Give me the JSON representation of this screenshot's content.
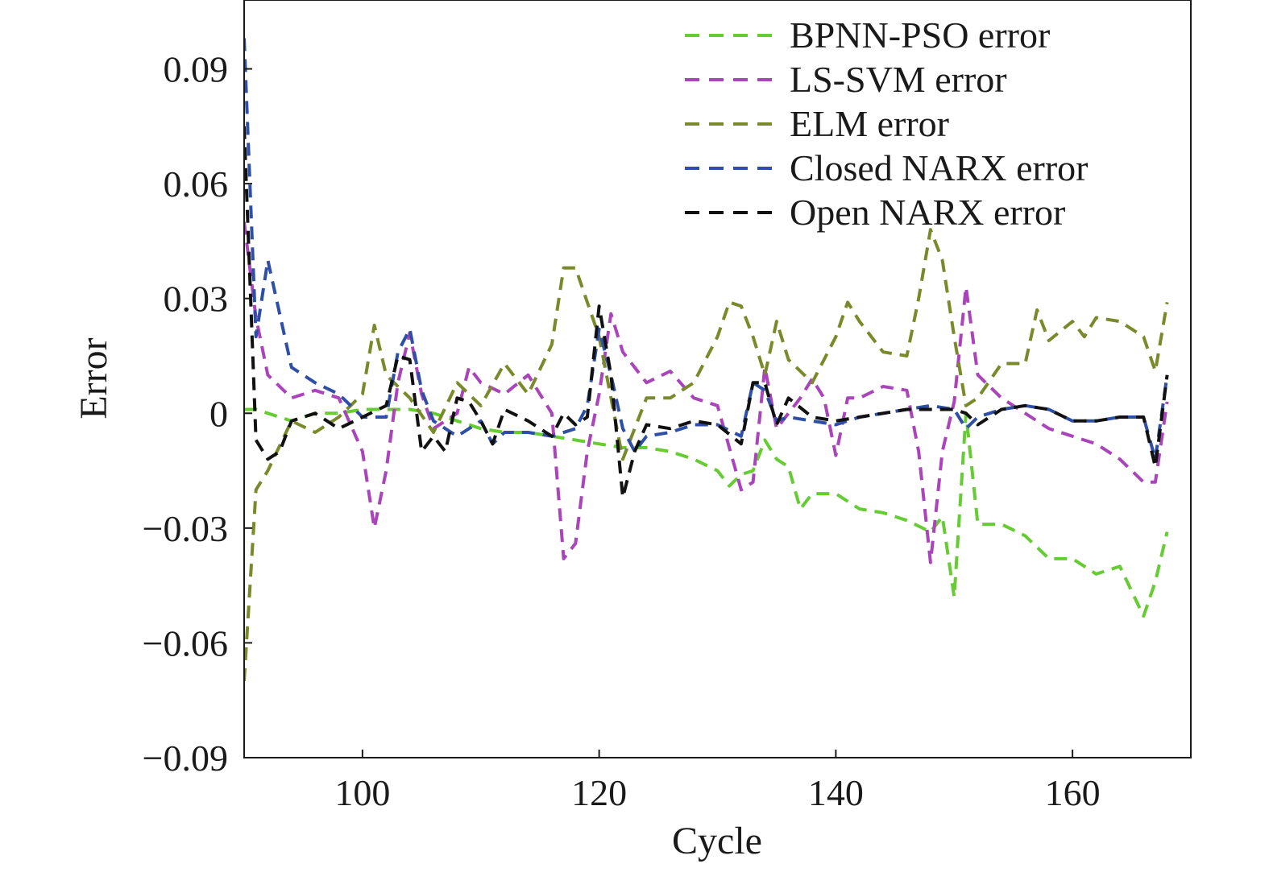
{
  "chart_data": {
    "type": "line",
    "title": "",
    "xlabel": "Cycle",
    "ylabel": "Error",
    "xlim": [
      90,
      170
    ],
    "ylim": [
      -0.09,
      0.108
    ],
    "xticks": [
      100,
      120,
      140,
      160
    ],
    "xtick_labels": [
      "100",
      "120",
      "140",
      "160"
    ],
    "yticks": [
      0.09,
      0.06,
      0.03,
      0,
      -0.03,
      -0.06,
      -0.09
    ],
    "ytick_labels": [
      "0.09",
      "0.06",
      "0.03",
      "0",
      "−0.03",
      "−0.06",
      "−0.09"
    ],
    "grid": false,
    "legend_position": "top-right",
    "line_style": "dashed",
    "series": [
      {
        "name": "BPNN-PSO error",
        "color": "#66cc33",
        "x": [
          90,
          91,
          92,
          94,
          96,
          98,
          100,
          102,
          104,
          106,
          108,
          110,
          112,
          114,
          116,
          118,
          120,
          122,
          124,
          126,
          128,
          130,
          131,
          132,
          133,
          134,
          135,
          136,
          137,
          138,
          140,
          142,
          144,
          146,
          148,
          149,
          150,
          151,
          152,
          154,
          156,
          158,
          160,
          162,
          164,
          166,
          167,
          168
        ],
        "y": [
          0.001,
          0.001,
          0.0,
          -0.002,
          0.0,
          0.0,
          0.001,
          0.001,
          0.001,
          0.0,
          -0.002,
          -0.004,
          -0.005,
          -0.005,
          -0.006,
          -0.007,
          -0.008,
          -0.009,
          -0.009,
          -0.01,
          -0.012,
          -0.015,
          -0.019,
          -0.016,
          -0.015,
          -0.007,
          -0.012,
          -0.014,
          -0.025,
          -0.021,
          -0.021,
          -0.025,
          -0.026,
          -0.028,
          -0.031,
          -0.027,
          -0.048,
          0.0,
          -0.029,
          -0.029,
          -0.032,
          -0.038,
          -0.038,
          -0.042,
          -0.04,
          -0.053,
          -0.044,
          -0.031
        ]
      },
      {
        "name": "LS-SVM error",
        "color": "#aa44bb",
        "x": [
          90,
          91,
          92,
          94,
          96,
          98,
          100,
          101,
          102,
          103,
          104,
          105,
          106,
          108,
          109,
          110,
          112,
          114,
          116,
          117,
          118,
          119,
          120,
          121,
          122,
          124,
          126,
          128,
          130,
          132,
          133,
          134,
          135,
          136,
          137,
          138,
          139,
          140,
          141,
          142,
          144,
          146,
          147,
          148,
          149,
          150,
          151,
          152,
          154,
          156,
          158,
          160,
          162,
          164,
          166,
          167,
          168
        ],
        "y": [
          0.05,
          0.025,
          0.01,
          0.004,
          0.006,
          0.004,
          -0.01,
          -0.03,
          -0.015,
          0.008,
          0.021,
          0.005,
          -0.004,
          0.0,
          0.012,
          0.008,
          0.005,
          0.01,
          0.0,
          -0.038,
          -0.034,
          -0.01,
          0.005,
          0.026,
          0.016,
          0.008,
          0.011,
          0.004,
          0.002,
          -0.02,
          -0.018,
          0.012,
          -0.004,
          0.0,
          0.004,
          0.009,
          0.004,
          -0.011,
          0.004,
          0.004,
          0.007,
          0.006,
          -0.01,
          -0.039,
          -0.01,
          0.003,
          0.033,
          0.01,
          0.004,
          0.0,
          -0.004,
          -0.006,
          -0.008,
          -0.012,
          -0.018,
          -0.018,
          0.003
        ]
      },
      {
        "name": "ELM error",
        "color": "#7a8a2a",
        "x": [
          90,
          91,
          92,
          94,
          96,
          98,
          100,
          101,
          102,
          104,
          106,
          108,
          110,
          112,
          114,
          116,
          117,
          118,
          120,
          122,
          124,
          126,
          128,
          130,
          131,
          132,
          133,
          134,
          135,
          136,
          138,
          140,
          141,
          142,
          144,
          146,
          147,
          148,
          149,
          150,
          151,
          152,
          154,
          156,
          157,
          158,
          160,
          161,
          162,
          164,
          166,
          167,
          168
        ],
        "y": [
          -0.07,
          -0.02,
          -0.015,
          -0.002,
          -0.005,
          -0.001,
          0.005,
          0.023,
          0.01,
          0.004,
          -0.005,
          0.008,
          0.002,
          0.013,
          0.005,
          0.018,
          0.038,
          0.038,
          0.02,
          -0.012,
          0.004,
          0.004,
          0.008,
          0.02,
          0.029,
          0.028,
          0.02,
          0.01,
          0.024,
          0.014,
          0.008,
          0.02,
          0.029,
          0.024,
          0.016,
          0.015,
          0.03,
          0.048,
          0.04,
          0.02,
          0.002,
          0.004,
          0.013,
          0.013,
          0.027,
          0.019,
          0.024,
          0.02,
          0.025,
          0.024,
          0.02,
          0.011,
          0.029
        ]
      },
      {
        "name": "Closed NARX error",
        "color": "#2f4fa6",
        "x": [
          90,
          91,
          92,
          94,
          96,
          98,
          100,
          102,
          103,
          104,
          105,
          106,
          107,
          108,
          109,
          110,
          111,
          112,
          114,
          116,
          118,
          119,
          120,
          121,
          122,
          123,
          124,
          126,
          128,
          130,
          132,
          133,
          134,
          135,
          136,
          138,
          140,
          142,
          144,
          146,
          148,
          150,
          151,
          152,
          154,
          156,
          158,
          160,
          162,
          164,
          166,
          167,
          168
        ],
        "y": [
          0.098,
          0.02,
          0.04,
          0.012,
          0.008,
          0.005,
          -0.001,
          -0.001,
          0.016,
          0.022,
          0.006,
          -0.002,
          -0.004,
          -0.006,
          -0.004,
          -0.002,
          -0.008,
          -0.005,
          -0.005,
          -0.006,
          -0.004,
          0.002,
          0.022,
          0.01,
          -0.004,
          -0.01,
          -0.006,
          -0.005,
          -0.003,
          -0.003,
          -0.006,
          0.008,
          0.006,
          -0.002,
          -0.001,
          -0.002,
          -0.003,
          -0.001,
          0.0,
          0.001,
          0.002,
          0.001,
          -0.004,
          -0.001,
          0.001,
          0.002,
          0.001,
          -0.002,
          -0.002,
          -0.001,
          -0.001,
          -0.012,
          0.01
        ]
      },
      {
        "name": "Open NARX error",
        "color": "#111111",
        "x": [
          90,
          91,
          92,
          93,
          94,
          96,
          98,
          100,
          102,
          103,
          104,
          105,
          106,
          107,
          108,
          109,
          110,
          111,
          112,
          114,
          116,
          117,
          118,
          119,
          120,
          121,
          122,
          123,
          124,
          126,
          128,
          130,
          132,
          133,
          134,
          135,
          136,
          138,
          140,
          142,
          144,
          146,
          148,
          150,
          151,
          152,
          154,
          156,
          158,
          160,
          162,
          164,
          166,
          167,
          168
        ],
        "y": [
          0.075,
          -0.007,
          -0.012,
          -0.01,
          -0.002,
          0.0,
          -0.004,
          -0.001,
          0.002,
          0.015,
          0.014,
          -0.01,
          -0.006,
          -0.01,
          0.004,
          0.003,
          -0.002,
          -0.008,
          0.001,
          -0.002,
          -0.006,
          0.0,
          -0.003,
          -0.001,
          0.028,
          0.01,
          -0.022,
          -0.01,
          -0.003,
          -0.004,
          -0.002,
          -0.003,
          -0.008,
          0.008,
          0.008,
          -0.003,
          0.004,
          -0.001,
          -0.002,
          -0.001,
          0.0,
          0.001,
          0.001,
          0.001,
          0.0,
          -0.003,
          0.001,
          0.002,
          0.001,
          -0.002,
          -0.002,
          -0.001,
          -0.001,
          -0.014,
          0.01
        ]
      }
    ]
  }
}
